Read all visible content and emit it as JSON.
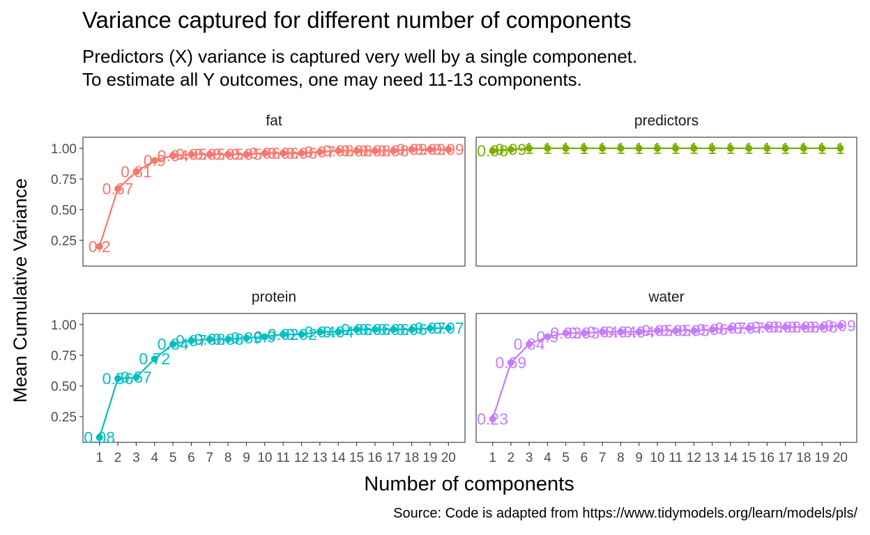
{
  "title": "Variance captured for different number of components",
  "subtitle_lines": [
    "Predictors (X) variance is captured very well by a single componenet.",
    "To estimate all Y outcomes, one may need 11-13 components."
  ],
  "caption": "Source: Code is adapted from https://www.tidymodels.org/learn/models/pls/",
  "chart_data": {
    "type": "line",
    "facet": "wrap",
    "xlabel": "Number of components",
    "ylabel": "Mean Cumulative Variance",
    "x": [
      1,
      2,
      3,
      4,
      5,
      6,
      7,
      8,
      9,
      10,
      11,
      12,
      13,
      14,
      15,
      16,
      17,
      18,
      19,
      20
    ],
    "x_ticks": [
      "1",
      "2",
      "3",
      "4",
      "5",
      "6",
      "7",
      "8",
      "9",
      "10",
      "11",
      "12",
      "13",
      "14",
      "15",
      "16",
      "17",
      "18",
      "19",
      "20"
    ],
    "y_ticks": [
      "0.25",
      "0.50",
      "0.75",
      "1.00"
    ],
    "y_tick_values": [
      0.25,
      0.5,
      0.75,
      1.0
    ],
    "ylim": [
      0.04,
      1.09
    ],
    "xlim": [
      0.1,
      20.9
    ],
    "grid": false,
    "legend": "none",
    "panels": [
      {
        "name": "fat",
        "color": "#F8766D",
        "values": [
          0.2,
          0.67,
          0.81,
          0.9,
          0.94,
          0.95,
          0.95,
          0.95,
          0.95,
          0.96,
          0.96,
          0.96,
          0.97,
          0.98,
          0.98,
          0.98,
          0.98,
          0.99,
          0.99,
          0.99
        ],
        "labels": [
          "0.2",
          "0.67",
          "0.81",
          "0.9",
          "0.94",
          "0.95",
          "0.95",
          "0.95",
          "0.95",
          "0.96",
          "0.96",
          "0.96",
          "0.97",
          "0.98",
          "0.98",
          "0.98",
          "0.98",
          "0.99",
          "0.99",
          "0.99"
        ]
      },
      {
        "name": "predictors",
        "color": "#7CAE00",
        "values": [
          0.98,
          0.99,
          1,
          1,
          1,
          1,
          1,
          1,
          1,
          1,
          1,
          1,
          1,
          1,
          1,
          1,
          1,
          1,
          1,
          1
        ],
        "labels": [
          "0.98",
          "0.99",
          "1",
          "1",
          "1",
          "1",
          "1",
          "1",
          "1",
          "1",
          "1",
          "1",
          "1",
          "1",
          "1",
          "1",
          "1",
          "1",
          "1",
          "1"
        ]
      },
      {
        "name": "protein",
        "color": "#00BFC4",
        "values": [
          0.08,
          0.56,
          0.57,
          0.72,
          0.84,
          0.87,
          0.88,
          0.88,
          0.89,
          0.9,
          0.92,
          0.92,
          0.94,
          0.94,
          0.96,
          0.96,
          0.96,
          0.96,
          0.97,
          0.97
        ],
        "labels": [
          "0.08",
          "0.56",
          "0.57",
          "0.72",
          "0.84",
          "0.87",
          "0.88",
          "0.88",
          "0.89",
          "0.9",
          "0.92",
          "0.92",
          "0.94",
          "0.94",
          "0.96",
          "0.96",
          "0.96",
          "0.96",
          "0.97",
          "0.97"
        ]
      },
      {
        "name": "water",
        "color": "#C77CFF",
        "values": [
          0.23,
          0.69,
          0.84,
          0.9,
          0.93,
          0.93,
          0.94,
          0.94,
          0.94,
          0.95,
          0.95,
          0.95,
          0.96,
          0.97,
          0.97,
          0.98,
          0.98,
          0.98,
          0.98,
          0.99
        ],
        "labels": [
          "0.23",
          "0.69",
          "0.84",
          "0.9",
          "0.93",
          "0.93",
          "0.94",
          "0.94",
          "0.94",
          "0.95",
          "0.95",
          "0.95",
          "0.96",
          "0.97",
          "0.97",
          "0.98",
          "0.98",
          "0.98",
          "0.98",
          "0.99"
        ]
      }
    ]
  }
}
